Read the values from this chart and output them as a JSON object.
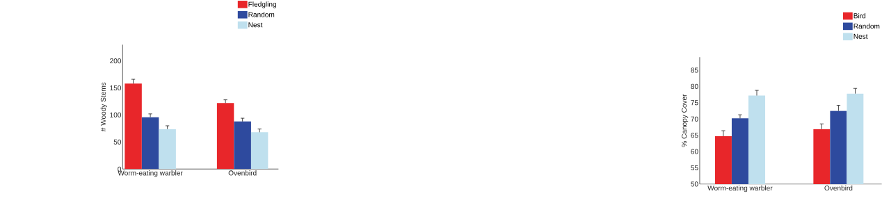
{
  "chart_data": [
    {
      "type": "bar",
      "ylabel": "# Woody Stems",
      "categories": [
        "Worm-eating warbler",
        "Ovenbird"
      ],
      "ylim": [
        0,
        230
      ],
      "yticks": [
        0,
        50,
        100,
        150,
        200
      ],
      "legend": "top right",
      "grid": false,
      "series": [
        {
          "name": "Fledgling",
          "color": "#e8262a",
          "values": [
            158,
            122
          ],
          "errors": [
            [
              158,
              166
            ],
            [
              122,
              128
            ]
          ]
        },
        {
          "name": "Random",
          "color": "#2e4a9e",
          "values": [
            96,
            88
          ],
          "errors": [
            [
              96,
              102
            ],
            [
              88,
              94
            ]
          ]
        },
        {
          "name": "Nest",
          "color": "#bfe0ee",
          "values": [
            74,
            68
          ],
          "errors": [
            [
              74,
              80
            ],
            [
              68,
              74
            ]
          ]
        }
      ]
    },
    {
      "type": "bar",
      "ylabel": "% Canopy Cover",
      "categories": [
        "Worm-eating warbler",
        "Ovenbird"
      ],
      "ylim": [
        50,
        89
      ],
      "yticks": [
        50,
        55,
        60,
        65,
        70,
        75,
        80,
        85
      ],
      "legend": "top right",
      "grid": false,
      "series": [
        {
          "name": "Bird",
          "color": "#e8262a",
          "values": [
            64.7,
            66.9
          ],
          "errors": [
            [
              64.7,
              66.4
            ],
            [
              66.9,
              68.5
            ]
          ]
        },
        {
          "name": "Random",
          "color": "#2e4a9e",
          "values": [
            70.2,
            72.5
          ],
          "errors": [
            [
              70.2,
              71.3
            ],
            [
              72.5,
              74.2
            ]
          ]
        },
        {
          "name": "Nest",
          "color": "#bfe0ee",
          "values": [
            77.2,
            77.8
          ],
          "errors": [
            [
              77.2,
              78.8
            ],
            [
              77.8,
              79.4
            ]
          ]
        }
      ]
    }
  ]
}
